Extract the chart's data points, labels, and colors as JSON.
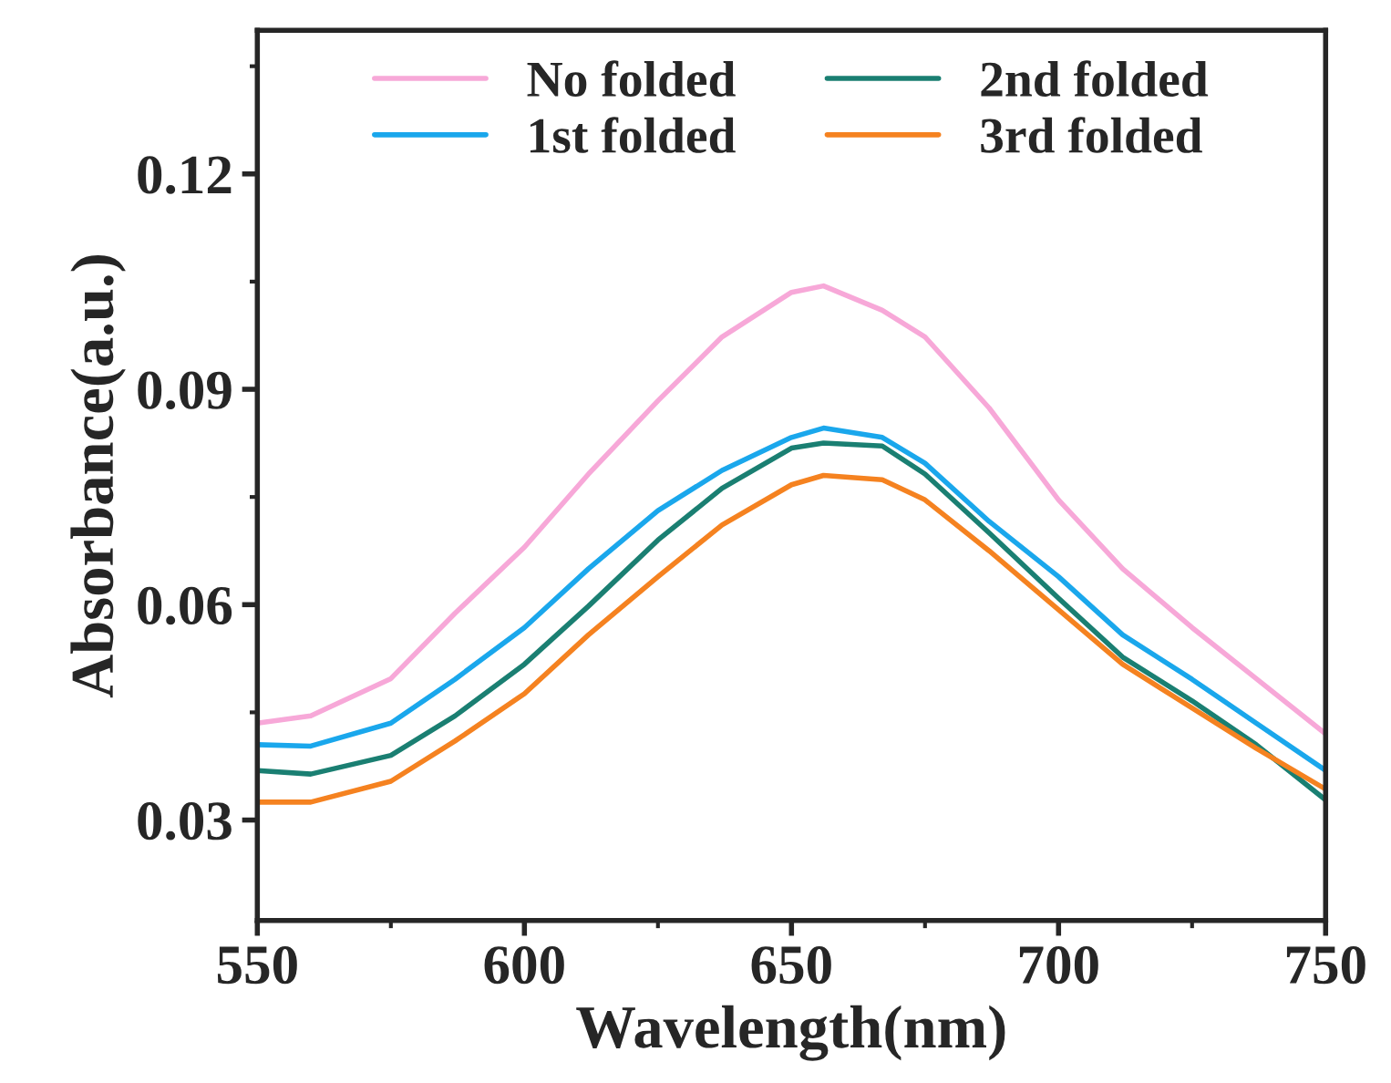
{
  "chart_data": {
    "type": "line",
    "xlabel": "Wavelength(nm)",
    "ylabel": "Absorbance(a.u.)",
    "xlim": [
      550,
      750
    ],
    "xticks": [
      550,
      600,
      650,
      700,
      750
    ],
    "ylim": [
      0.016,
      0.14
    ],
    "yticks": [
      0.03,
      0.06,
      0.09,
      0.12
    ],
    "grid": false,
    "legend": "top",
    "marker": "none",
    "line_style": "solid",
    "x": [
      550,
      560,
      575,
      587,
      600,
      612,
      625,
      637,
      650,
      656,
      667,
      675,
      687,
      700,
      712,
      725,
      737,
      750
    ],
    "series": [
      {
        "name": "No folded",
        "color": "#f7a8d8",
        "values": [
          0.0435,
          0.0445,
          0.0497,
          0.0588,
          0.068,
          0.0782,
          0.0884,
          0.0973,
          0.1035,
          0.1044,
          0.101,
          0.0973,
          0.0874,
          0.0746,
          0.065,
          0.0568,
          0.0497,
          0.042
        ]
      },
      {
        "name": "1st folded",
        "color": "#1aa7ec",
        "values": [
          0.0405,
          0.0403,
          0.0435,
          0.0496,
          0.0568,
          0.065,
          0.0731,
          0.0787,
          0.0833,
          0.0846,
          0.0833,
          0.0797,
          0.0716,
          0.0639,
          0.0558,
          0.0496,
          0.0435,
          0.0369
        ]
      },
      {
        "name": "2nd folded",
        "color": "#1a7f72",
        "values": [
          0.0369,
          0.0364,
          0.039,
          0.0445,
          0.0517,
          0.0598,
          0.069,
          0.0762,
          0.0818,
          0.0825,
          0.0821,
          0.0782,
          0.07,
          0.0609,
          0.0527,
          0.0466,
          0.0405,
          0.0328
        ]
      },
      {
        "name": "3rd folded",
        "color": "#f58220",
        "values": [
          0.0325,
          0.0325,
          0.0354,
          0.041,
          0.0476,
          0.0558,
          0.0639,
          0.0711,
          0.0767,
          0.078,
          0.0774,
          0.0746,
          0.0675,
          0.0593,
          0.0517,
          0.0456,
          0.04,
          0.0343
        ]
      }
    ]
  }
}
